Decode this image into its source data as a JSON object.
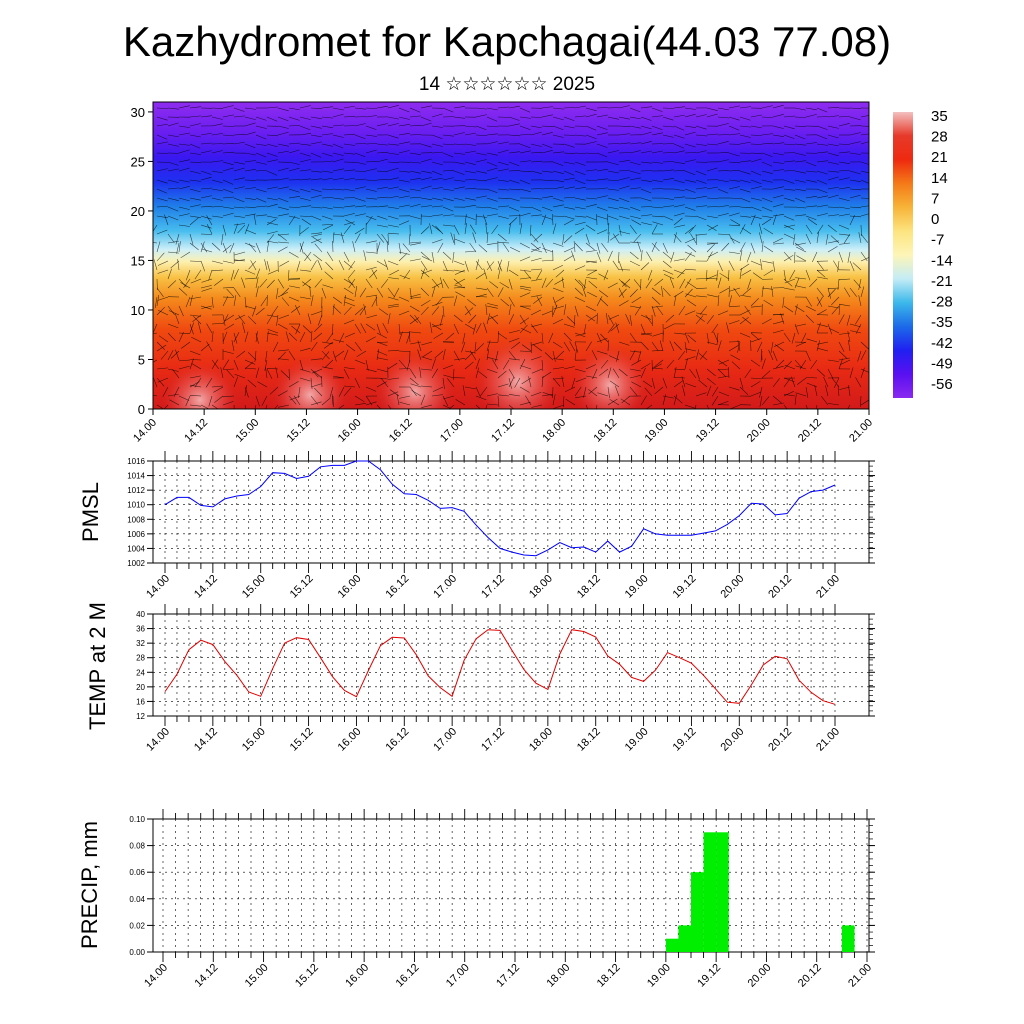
{
  "page": {
    "title": "Kazhydromet for Kapchagai(44.03 77.08)",
    "subtitle": "14 ☆☆☆☆☆☆ 2025"
  },
  "time_ticks": [
    "14.00",
    "14.12",
    "15.00",
    "15.12",
    "16.00",
    "16.12",
    "17.00",
    "17.12",
    "18.00",
    "18.12",
    "19.00",
    "19.12",
    "20.00",
    "20.12",
    "21.00"
  ],
  "chart_data": [
    {
      "type": "heatmap",
      "title": "Kazhydromet for Kapchagai(44.03 77.08)",
      "subtitle": "14 ☆☆☆☆☆☆ 2025",
      "x_ticks": [
        "14.00",
        "14.12",
        "15.00",
        "15.12",
        "16.00",
        "16.12",
        "17.00",
        "17.12",
        "18.00",
        "18.12",
        "19.00",
        "19.12",
        "20.00",
        "20.12",
        "21.00"
      ],
      "y_ticks": [
        0,
        5,
        10,
        15,
        20,
        25,
        30
      ],
      "ylim": [
        0,
        31
      ],
      "colorbar_labels": [
        35,
        28,
        21,
        14,
        7,
        0,
        -7,
        -14,
        -21,
        -28,
        -35,
        -42,
        -49,
        -56
      ],
      "colorbar_colors": [
        "#f3c0c0",
        "#e63a2a",
        "#ee2a10",
        "#f47a18",
        "#f7b438",
        "#fde480",
        "#fdf5b8",
        "#c4ecf6",
        "#3cb8ea",
        "#1c6ae8",
        "#2020f0",
        "#5a10f0",
        "#8a28f0"
      ],
      "overlay": "wind barbs"
    },
    {
      "type": "line",
      "ylabel": "PMSL",
      "y_ticks": [
        1002,
        1004,
        1006,
        1008,
        1010,
        1012,
        1014,
        1016
      ],
      "ylim": [
        1002,
        1016
      ],
      "color": "#0000ff",
      "x_step_hours": 3,
      "values": [
        1010.0,
        1011.0,
        1011.0,
        1009.9,
        1009.7,
        1010.8,
        1011.2,
        1011.4,
        1012.5,
        1014.4,
        1014.3,
        1013.6,
        1013.9,
        1015.2,
        1015.4,
        1015.4,
        1016.0,
        1016.0,
        1014.8,
        1012.8,
        1011.5,
        1011.4,
        1010.6,
        1009.5,
        1009.6,
        1009.1,
        1007.2,
        1005.5,
        1004.0,
        1003.5,
        1003.1,
        1003.0,
        1003.8,
        1004.8,
        1004.1,
        1004.2,
        1003.5,
        1005.0,
        1003.5,
        1004.3,
        1006.7,
        1006.0,
        1005.8,
        1005.8,
        1005.8,
        1006.1,
        1006.4,
        1007.3,
        1008.5,
        1010.2,
        1010.1,
        1008.6,
        1008.8,
        1010.9,
        1011.8,
        1012.0,
        1012.7
      ]
    },
    {
      "type": "line",
      "ylabel": "TEMP at 2 M",
      "y_ticks": [
        12,
        16,
        20,
        24,
        28,
        32,
        36,
        40
      ],
      "ylim": [
        12,
        40
      ],
      "color": "#e00000",
      "x_step_hours": 3,
      "values": [
        18.7,
        23.5,
        30.2,
        32.8,
        31.6,
        27.0,
        23.2,
        18.6,
        17.4,
        25.0,
        32.0,
        33.5,
        33.0,
        28.0,
        22.8,
        19.0,
        17.3,
        24.5,
        31.3,
        33.6,
        33.4,
        28.8,
        23.0,
        19.8,
        17.4,
        27.3,
        33.2,
        35.7,
        35.5,
        30.0,
        24.8,
        21.0,
        19.3,
        29.0,
        35.7,
        35.2,
        33.7,
        28.5,
        26.2,
        22.6,
        21.5,
        24.6,
        29.4,
        28.0,
        26.5,
        23.2,
        19.5,
        15.8,
        15.5,
        20.5,
        26.0,
        28.4,
        27.7,
        21.8,
        18.5,
        16.2,
        15.2
      ]
    },
    {
      "type": "bar",
      "ylabel": "PRECIP, mm",
      "y_ticks": [
        "0.00",
        "0.02",
        "0.04",
        "0.06",
        "0.08",
        "0.10"
      ],
      "ylim": [
        0,
        0.1
      ],
      "color": "#00ee00",
      "bars": [
        {
          "hour": 120,
          "value": 0.01
        },
        {
          "hour": 123,
          "value": 0.02
        },
        {
          "hour": 126,
          "value": 0.06
        },
        {
          "hour": 129,
          "value": 0.09
        },
        {
          "hour": 132,
          "value": 0.09
        },
        {
          "hour": 162,
          "value": 0.02
        }
      ]
    }
  ]
}
